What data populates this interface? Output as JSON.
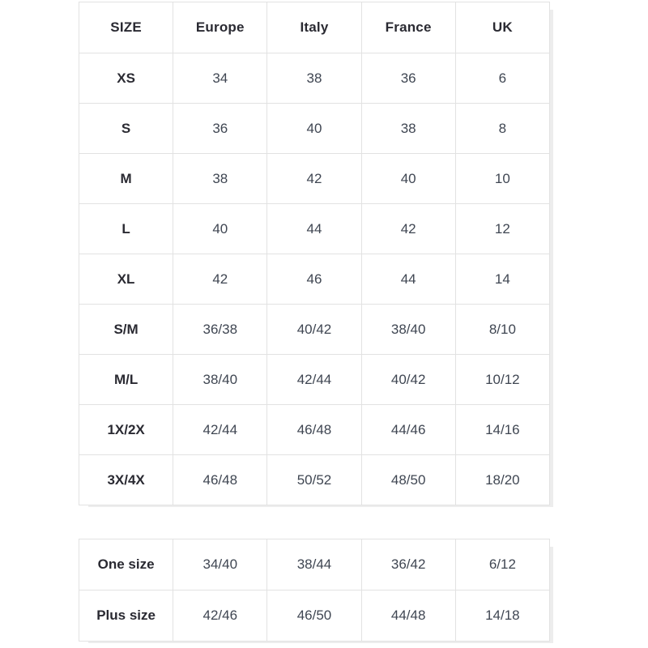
{
  "colors": {
    "background": "#ffffff",
    "border": "#e2e2e2",
    "header_text": "#2a2a32",
    "cell_text": "#3f4652"
  },
  "size_table": {
    "headers": [
      "SIZE",
      "Europe",
      "Italy",
      "France",
      "UK"
    ],
    "rows": [
      {
        "label": "XS",
        "values": [
          "34",
          "38",
          "36",
          "6"
        ]
      },
      {
        "label": "S",
        "values": [
          "36",
          "40",
          "38",
          "8"
        ]
      },
      {
        "label": "M",
        "values": [
          "38",
          "42",
          "40",
          "10"
        ]
      },
      {
        "label": "L",
        "values": [
          "40",
          "44",
          "42",
          "12"
        ]
      },
      {
        "label": "XL",
        "values": [
          "42",
          "46",
          "44",
          "14"
        ]
      },
      {
        "label": "S/M",
        "values": [
          "36/38",
          "40/42",
          "38/40",
          "8/10"
        ]
      },
      {
        "label": "M/L",
        "values": [
          "38/40",
          "42/44",
          "40/42",
          "10/12"
        ]
      },
      {
        "label": "1X/2X",
        "values": [
          "42/44",
          "46/48",
          "44/46",
          "14/16"
        ]
      },
      {
        "label": "3X/4X",
        "values": [
          "46/48",
          "50/52",
          "48/50",
          "18/20"
        ]
      }
    ]
  },
  "special_table": {
    "rows": [
      {
        "label": "One size",
        "values": [
          "34/40",
          "38/44",
          "36/42",
          "6/12"
        ]
      },
      {
        "label": "Plus size",
        "values": [
          "42/46",
          "46/50",
          "44/48",
          "14/18"
        ]
      }
    ]
  }
}
